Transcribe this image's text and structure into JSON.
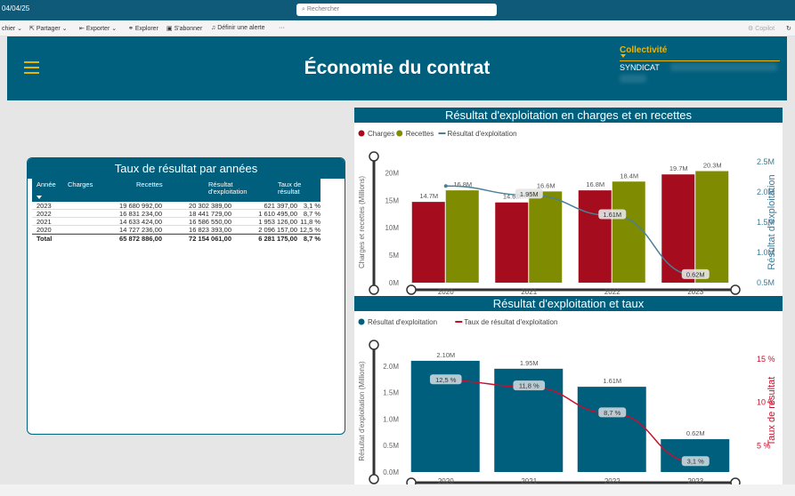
{
  "topbar": {
    "date": "04/04/25",
    "search_placeholder": "Rechercher"
  },
  "toolbar": {
    "items": [
      "chier",
      "Partager",
      "Exporter",
      "Explorer",
      "S'abonner",
      "Définir une alerte",
      "···"
    ],
    "copilot": "Copilot"
  },
  "header": {
    "title": "Économie du contrat",
    "collectivite_label": "Collectivité",
    "collectivite_value": "SYNDICAT"
  },
  "table": {
    "title": "Taux de résultat par années",
    "columns": [
      "Année",
      "Charges",
      "Recettes",
      "Résultat d'exploitation",
      "Taux de résultat"
    ],
    "rows": [
      [
        "2023",
        "19 680 992,00",
        "20 302 389,00",
        "621 397,00",
        "3,1 %"
      ],
      [
        "2022",
        "16 831 234,00",
        "18 441 729,00",
        "1 610 495,00",
        "8,7 %"
      ],
      [
        "2021",
        "14 633 424,00",
        "16 586 550,00",
        "1 953 126,00",
        "11,8 %"
      ],
      [
        "2020",
        "14 727 236,00",
        "16 823 393,00",
        "2 096 157,00",
        "12,5 %"
      ]
    ],
    "total": [
      "Total",
      "65 872 886,00",
      "72 154 061,00",
      "6 281 175,00",
      "8,7 %"
    ]
  },
  "chart_data": [
    {
      "type": "bar",
      "title": "Résultat d'exploitation en charges et en recettes",
      "categories": [
        "2020",
        "2021",
        "2022",
        "2023"
      ],
      "series": [
        {
          "name": "Charges",
          "values": [
            14.7,
            14.6,
            16.8,
            19.7
          ],
          "color": "#a50d1f",
          "labels": [
            "14.7M",
            "14.6M",
            "16.8M",
            "19.7M"
          ]
        },
        {
          "name": "Recettes",
          "values": [
            16.8,
            16.6,
            18.4,
            20.3
          ],
          "color": "#7f8b00",
          "labels": [
            "16.8M",
            "16.6M",
            "18.4M",
            "20.3M"
          ]
        },
        {
          "name": "Résultat d'exploitation",
          "values": [
            2.1,
            1.95,
            1.61,
            0.62
          ],
          "color": "#4a8097",
          "axis": "right",
          "labels": [
            "",
            "1.95M",
            "1.61M",
            "0.62M"
          ]
        }
      ],
      "ylabel": "Charges et recettes (Millions)",
      "y2label": "Résultat d'exploitation",
      "ylim": [
        0,
        22
      ],
      "yticks": [
        "0M",
        "5M",
        "10M",
        "15M",
        "20M"
      ],
      "y2lim": [
        0.5,
        2.5
      ],
      "y2ticks": [
        "0.5M",
        "1.0M",
        "1.5M",
        "2.0M",
        "2.5M"
      ],
      "grid": false,
      "legend": "top-left"
    },
    {
      "type": "bar",
      "title": "Résultat d'exploitation et taux",
      "categories": [
        "2020",
        "2021",
        "2022",
        "2023"
      ],
      "series": [
        {
          "name": "Résultat d'exploitation",
          "values": [
            2.1,
            1.95,
            1.61,
            0.62
          ],
          "color": "#005f7d",
          "labels": [
            "2.10M",
            "1.95M",
            "1.61M",
            "0.62M"
          ]
        },
        {
          "name": "Taux de résultat d'exploitation",
          "values": [
            12.5,
            11.8,
            8.7,
            3.1
          ],
          "color": "#c8102e",
          "axis": "right",
          "labels": [
            "12,5 %",
            "11,8 %",
            "8,7 %",
            "3,1 %"
          ]
        }
      ],
      "ylabel": "Résultat d'exploitation (Millions)",
      "y2label": "Taux de résultat",
      "ylim": [
        0,
        2.3
      ],
      "yticks": [
        "0.0M",
        "0.5M",
        "1.0M",
        "1.5M",
        "2.0M"
      ],
      "y2lim": [
        2,
        16
      ],
      "y2ticks": [
        "5 %",
        "10 %",
        "15 %"
      ],
      "grid": false,
      "legend": "top-left"
    }
  ]
}
